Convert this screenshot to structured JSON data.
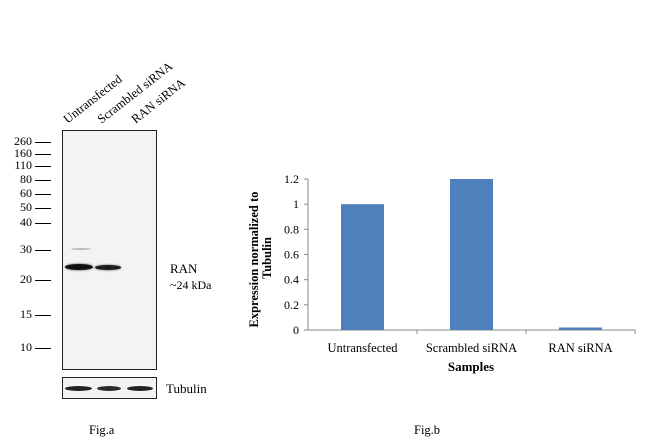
{
  "fig_a": {
    "lanes": [
      "Untransfected",
      "Scrambled siRNA",
      "RAN siRNA"
    ],
    "mw_markers": [
      "260",
      "160",
      "110",
      "80",
      "60",
      "50",
      "40",
      "30",
      "20",
      "15",
      "10"
    ],
    "protein_label": "RAN",
    "protein_size": "~24 kDa",
    "loading_control": "Tubulin",
    "caption": "Fig.a"
  },
  "fig_b": {
    "caption": "Fig.b"
  },
  "chart_data": {
    "type": "bar",
    "categories": [
      "Untransfected",
      "Scrambled siRNA",
      "RAN siRNA"
    ],
    "values": [
      1.0,
      1.2,
      0.02
    ],
    "xlabel": "Samples",
    "ylabel": "Expression normalized to Tubulin",
    "ylim": [
      0,
      1.2
    ],
    "yticks": [
      "0",
      "0.2",
      "0.4",
      "0.6",
      "0.8",
      "1",
      "1.2"
    ],
    "bar_color": "#4F81BD",
    "grid": false
  }
}
